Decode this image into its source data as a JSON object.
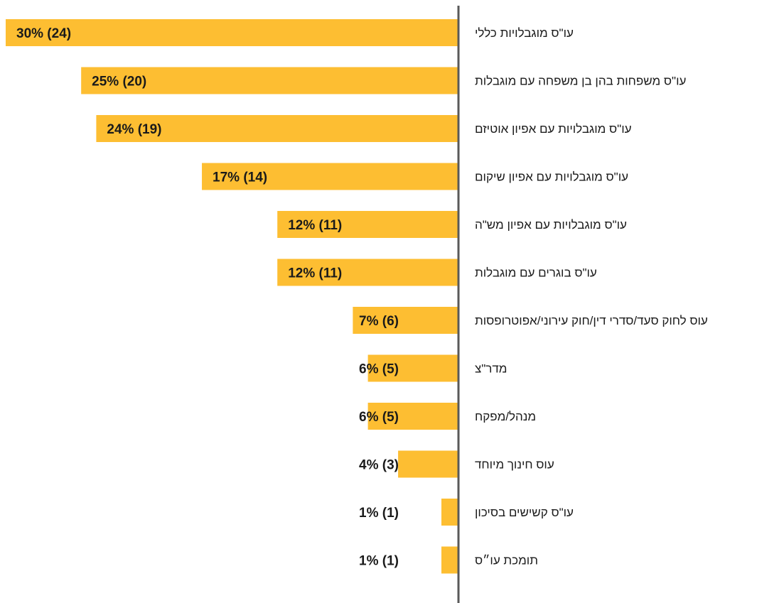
{
  "chart_data": {
    "type": "bar",
    "orientation": "horizontal",
    "categories": [
      "עו\"ס מוגבלויות כללי",
      "עו\"ס משפחות בהן בן משפחה עם מוגבלות",
      "עו\"ס מוגבלויות עם אפיון אוטיזם",
      "עו\"ס מוגבלויות עם אפיון שיקום",
      "עו\"ס מוגבלויות עם אפיון מש\"ה",
      "עו\"ס בוגרים עם מוגבלות",
      "עוס לחוק סעד/סדרי דין/חוק עירוני/אפוטרופסות",
      "מדר\"צ",
      "מנהל/מפקח",
      "עוס חינוך מיוחד",
      "עו\"ס קשישים בסיכון",
      "תומכת עו״ס"
    ],
    "values": [
      30,
      25,
      24,
      17,
      12,
      12,
      7,
      6,
      6,
      4,
      1,
      1
    ],
    "counts": [
      24,
      20,
      19,
      14,
      11,
      11,
      6,
      5,
      5,
      3,
      1,
      1
    ],
    "data_labels": [
      "30% (24)",
      "25% (20)",
      "24% (19)",
      "17% (14)",
      "12% (11)",
      "12% (11)",
      "7% (6)",
      "6% (5)",
      "6% (5)",
      "4% (3)",
      "1% (1)",
      "1% (1)"
    ],
    "title": "",
    "xlabel": "",
    "ylabel": "",
    "xlim": [
      0,
      30
    ],
    "grid": false,
    "legend": "none",
    "bar_color": "#FDBE32",
    "axis_color": "#595959"
  }
}
